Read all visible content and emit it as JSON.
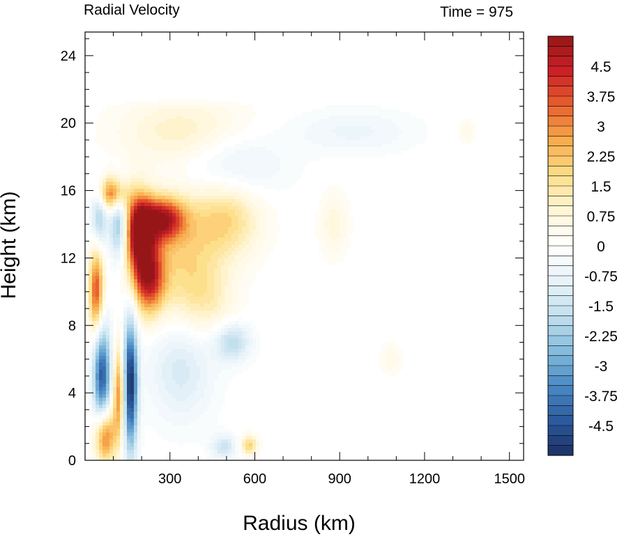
{
  "chart_data": {
    "type": "heatmap",
    "title": "Radial Velocity",
    "time_label": "Time = 975",
    "xlabel": "Radius (km)",
    "ylabel": "Height (km)",
    "xlim": [
      0,
      1550
    ],
    "ylim": [
      0,
      25.4
    ],
    "x_ticks": [
      300,
      600,
      900,
      1200,
      1500
    ],
    "y_ticks": [
      0,
      4,
      8,
      12,
      16,
      20,
      24
    ],
    "colorbar": {
      "range": [
        -5.25,
        5.25
      ],
      "step": 0.25,
      "labels": [
        "4.5",
        "3.75",
        "3",
        "2.25",
        "1.5",
        "0.75",
        "0",
        "-0.75",
        "-1.5",
        "-2.25",
        "-3",
        "-3.75",
        "-4.5"
      ],
      "label_values": [
        4.5,
        3.75,
        3,
        2.25,
        1.5,
        0.75,
        0,
        -0.75,
        -1.5,
        -2.25,
        -3,
        -3.75,
        -4.5
      ],
      "colors_neg_to_pos": [
        "#1c3064",
        "#2c5a9e",
        "#4a8ac5",
        "#84bcdd",
        "#c2e0ee",
        "#e8f3f9",
        "#ffffff",
        "#fff6d8",
        "#fde08c",
        "#f8ad4e",
        "#e8622e",
        "#cb2127",
        "#961618"
      ]
    },
    "features": [
      {
        "x": 190,
        "y": 13.5,
        "v": 5.2,
        "sx": 35,
        "sy": 1.6
      },
      {
        "x": 270,
        "y": 14.3,
        "v": 4.5,
        "sx": 55,
        "sy": 0.9
      },
      {
        "x": 225,
        "y": 10.8,
        "v": 4.2,
        "sx": 40,
        "sy": 1.5
      },
      {
        "x": 95,
        "y": 15.8,
        "v": 3.6,
        "sx": 35,
        "sy": 0.7
      },
      {
        "x": 40,
        "y": 10.0,
        "v": 3.8,
        "sx": 18,
        "sy": 1.8
      },
      {
        "x": 70,
        "y": 1.5,
        "v": 3.8,
        "sx": 25,
        "sy": 1.2
      },
      {
        "x": 120,
        "y": 4.0,
        "v": 3.2,
        "sx": 15,
        "sy": 2.0
      },
      {
        "x": 500,
        "y": 14.3,
        "v": 1.8,
        "sx": 85,
        "sy": 1.6
      },
      {
        "x": 340,
        "y": 12.0,
        "v": 1.6,
        "sx": 90,
        "sy": 2.6
      },
      {
        "x": 430,
        "y": 9.5,
        "v": 1.0,
        "sx": 70,
        "sy": 1.6
      },
      {
        "x": 880,
        "y": 14.0,
        "v": 0.8,
        "sx": 35,
        "sy": 1.3
      },
      {
        "x": 350,
        "y": 19.5,
        "v": 1.1,
        "sx": 160,
        "sy": 1.4
      },
      {
        "x": 160,
        "y": 4.5,
        "v": -5.2,
        "sx": 18,
        "sy": 2.8
      },
      {
        "x": 60,
        "y": 5.0,
        "v": -4.4,
        "sx": 22,
        "sy": 2.2
      },
      {
        "x": 120,
        "y": 14.0,
        "v": -2.8,
        "sx": 22,
        "sy": 1.5
      },
      {
        "x": 50,
        "y": 14.5,
        "v": -2.2,
        "sx": 20,
        "sy": 1.3
      },
      {
        "x": 520,
        "y": 7.0,
        "v": -1.9,
        "sx": 45,
        "sy": 0.8
      },
      {
        "x": 340,
        "y": 5.5,
        "v": -1.3,
        "sx": 80,
        "sy": 2.2
      },
      {
        "x": 520,
        "y": 17.5,
        "v": -1.0,
        "sx": 130,
        "sy": 1.4
      },
      {
        "x": 950,
        "y": 19.5,
        "v": -0.7,
        "sx": 150,
        "sy": 0.9
      },
      {
        "x": 490,
        "y": 0.8,
        "v": -1.5,
        "sx": 30,
        "sy": 0.5
      },
      {
        "x": 580,
        "y": 0.9,
        "v": 2.0,
        "sx": 20,
        "sy": 0.4
      },
      {
        "x": 1080,
        "y": 6.0,
        "v": 0.6,
        "sx": 25,
        "sy": 0.6
      },
      {
        "x": 1350,
        "y": 19.5,
        "v": 0.6,
        "sx": 20,
        "sy": 0.5
      }
    ]
  }
}
